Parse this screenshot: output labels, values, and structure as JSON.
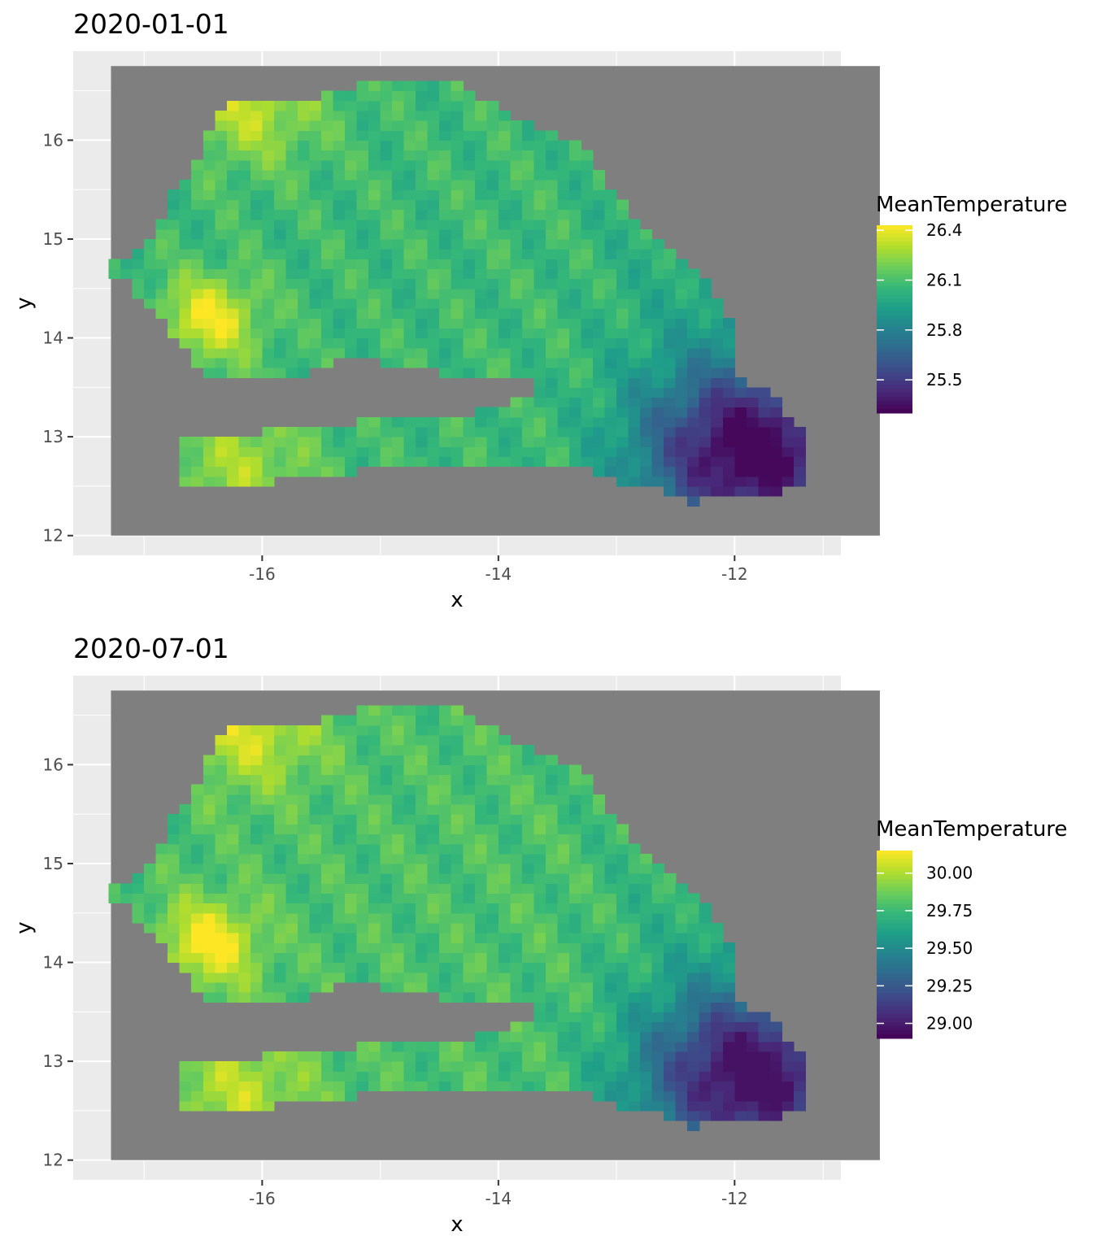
{
  "chart_data": [
    {
      "type": "heatmap",
      "title": "2020-01-01",
      "xlabel": "x",
      "ylabel": "y",
      "xlim": [
        -17.6,
        -11.1
      ],
      "ylim": [
        11.8,
        16.9
      ],
      "x_ticks": [
        -16,
        -14,
        -12
      ],
      "x_tick_labels": [
        "-16",
        "-14",
        "-12"
      ],
      "y_ticks": [
        12,
        13,
        14,
        15,
        16
      ],
      "y_tick_labels": [
        "12",
        "13",
        "14",
        "15",
        "16"
      ],
      "grid": true,
      "background": "#7f7f7f",
      "raster_extent": {
        "x": [
          -17.28,
          -10.77
        ],
        "y": [
          12.0,
          16.75
        ]
      },
      "colorscale": "viridis",
      "legend": {
        "title": "MeanTemperature",
        "placement": "right",
        "range": [
          25.3,
          26.43
        ],
        "ticks": [
          26.4,
          26.1,
          25.8,
          25.5
        ],
        "tick_labels": [
          "26.4",
          "26.1",
          "25.8",
          "25.5"
        ]
      }
    },
    {
      "type": "heatmap",
      "title": "2020-07-01",
      "xlabel": "x",
      "ylabel": "y",
      "xlim": [
        -17.6,
        -11.1
      ],
      "ylim": [
        11.8,
        16.9
      ],
      "x_ticks": [
        -16,
        -14,
        -12
      ],
      "x_tick_labels": [
        "-16",
        "-14",
        "-12"
      ],
      "y_ticks": [
        12,
        13,
        14,
        15,
        16
      ],
      "y_tick_labels": [
        "12",
        "13",
        "14",
        "15",
        "16"
      ],
      "grid": true,
      "background": "#7f7f7f",
      "raster_extent": {
        "x": [
          -17.28,
          -10.77
        ],
        "y": [
          12.0,
          16.75
        ]
      },
      "colorscale": "viridis",
      "legend": {
        "title": "MeanTemperature",
        "placement": "right",
        "range": [
          28.9,
          30.15
        ],
        "ticks": [
          30.0,
          29.75,
          29.5,
          29.25,
          29.0
        ],
        "tick_labels": [
          "30.00",
          "29.75",
          "29.50",
          "29.25",
          "29.00"
        ]
      }
    }
  ],
  "colors": {
    "panel_background": "#ebebeb",
    "gridline": "#ffffff",
    "tick_text": "#4d4d4d",
    "raster_nodata": "#7f7f7f"
  }
}
